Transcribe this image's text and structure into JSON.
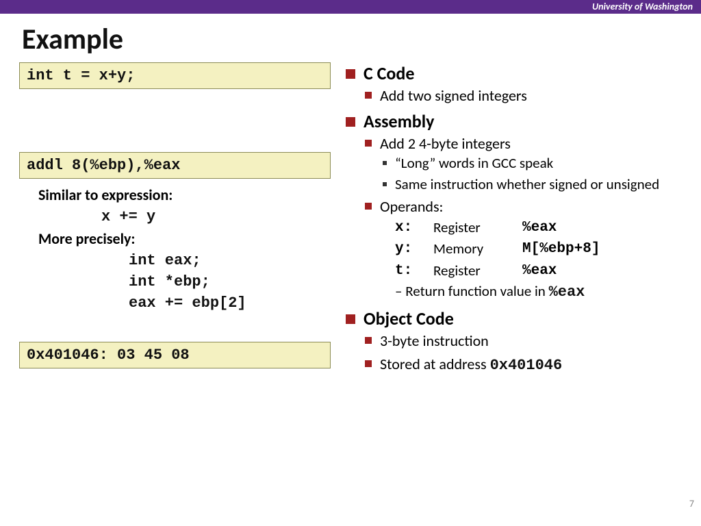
{
  "header": {
    "org": "University of Washington"
  },
  "title": "Example",
  "page_number": "7",
  "colors": {
    "topbar_bg": "#5b2c8a",
    "codebox_bg": "#f4f1c1",
    "codebox_border": "#8b8b55",
    "bullet_red": "#a02020"
  },
  "left": {
    "code_c": "int t = x+y;",
    "code_asm": "addl 8(%ebp),%eax",
    "label_similar": "Similar to expression:",
    "expr1": "x += y",
    "label_precise": "More precisely:",
    "line1": "int eax;",
    "line2": "int *ebp;",
    "line3": "eax += ebp[2]",
    "code_obj": "0x401046:   03 45 08"
  },
  "right": {
    "s1": "C Code",
    "s1_b1": "Add two signed integers",
    "s2": "Assembly",
    "s2_b1": "Add 2 4-byte integers",
    "s2_b1_s1": "“Long” words in GCC speak",
    "s2_b1_s2": "Same instruction whether signed or unsigned",
    "s2_b2": "Operands:",
    "op_x_var": "x:",
    "op_x_kind": "Register",
    "op_x_loc": "%eax",
    "op_y_var": "y:",
    "op_y_kind": "Memory",
    "op_y_loc": "M[%ebp+8]",
    "op_t_var": "t:",
    "op_t_kind": "Register",
    "op_t_loc": "%eax",
    "ret_prefix": "Return function value in ",
    "ret_reg": "%eax",
    "s3": "Object Code",
    "s3_b1": "3-byte instruction",
    "s3_b2_prefix": "Stored at address ",
    "s3_b2_addr": "0x401046"
  }
}
